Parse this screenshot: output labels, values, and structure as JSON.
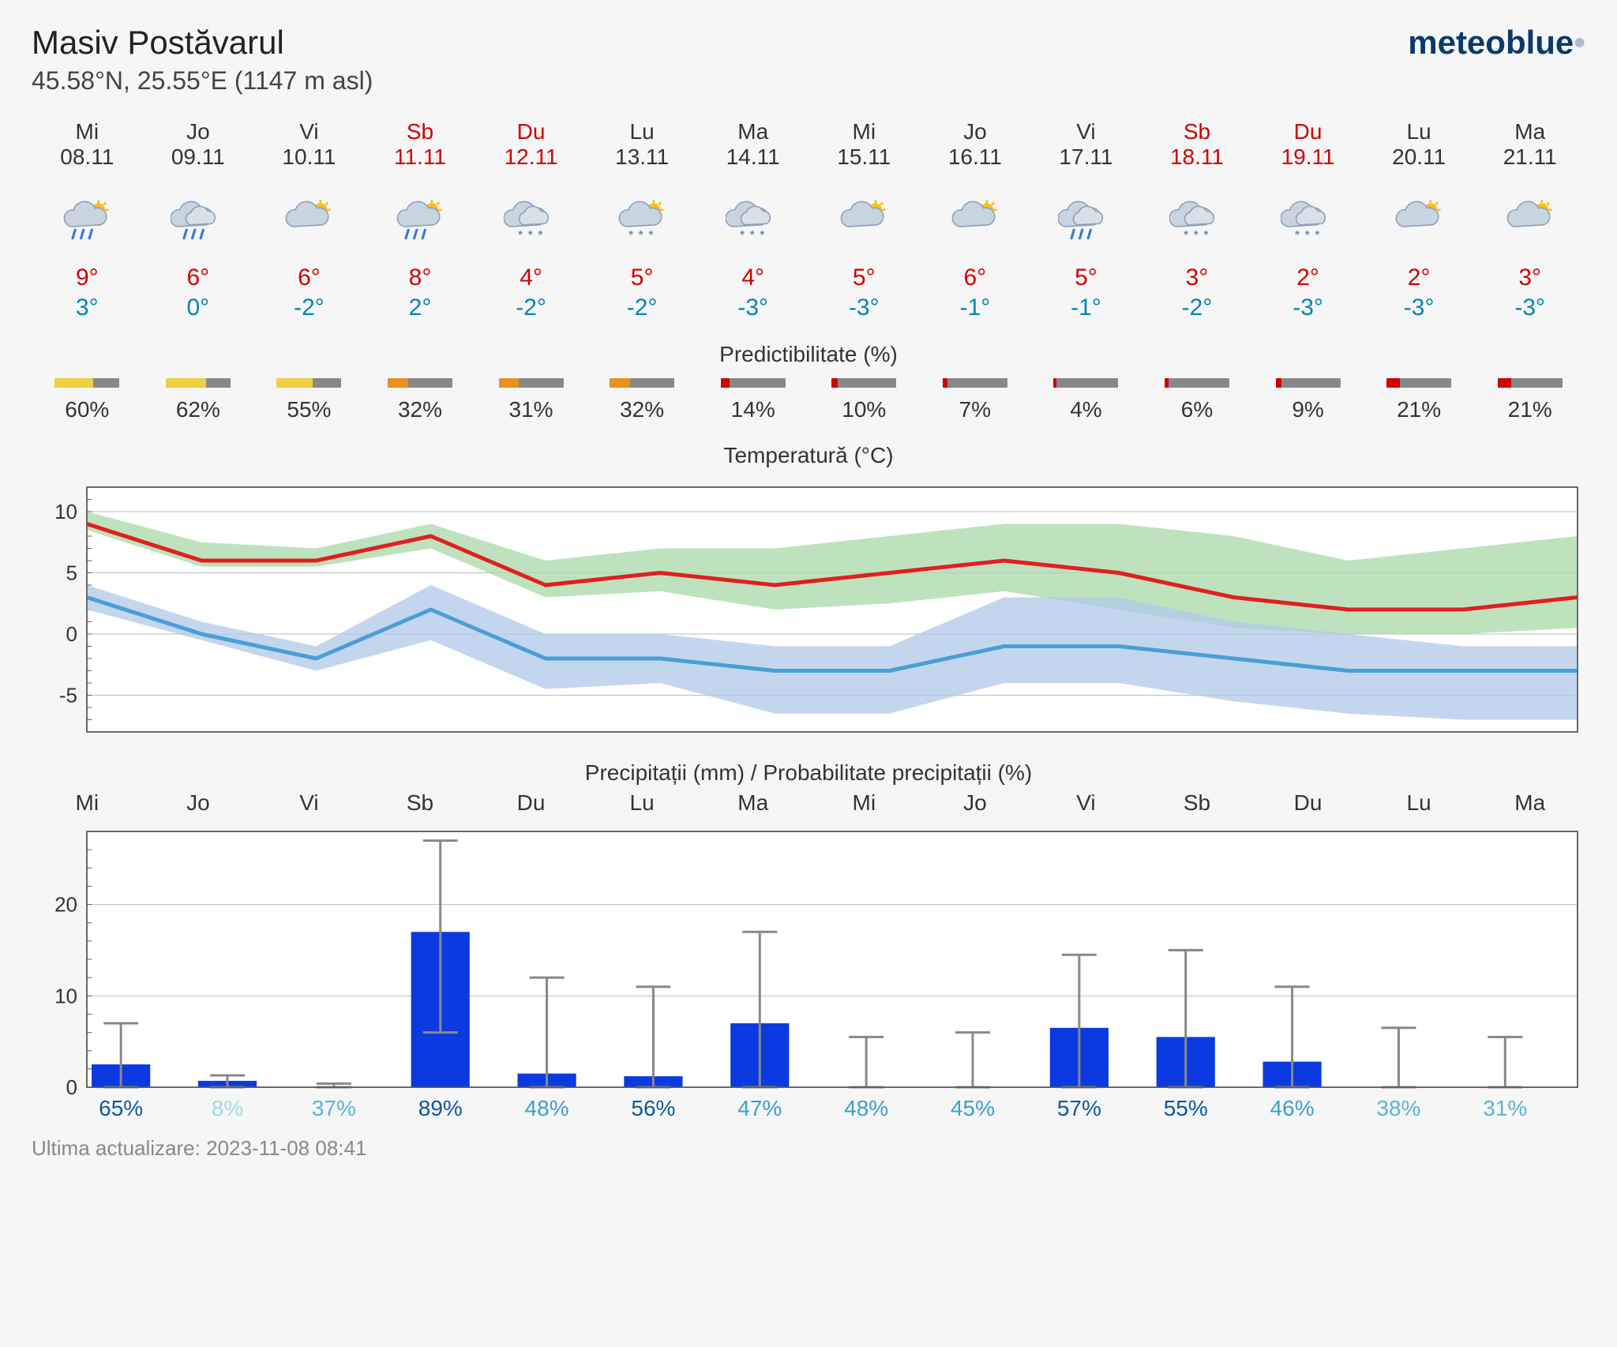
{
  "header": {
    "title": "Masiv Postăvarul",
    "subtitle": "45.58°N, 25.55°E (1147 m asl)",
    "logo_main": "meteoblue",
    "logo_dot": "•"
  },
  "labels": {
    "predictability": "Predictibilitate (%)",
    "temperature": "Temperatură (°C)",
    "precipitation": "Precipitații (mm) / Probabilitate precipitații (%)"
  },
  "days": [
    {
      "dow": "Mi",
      "date": "08.11",
      "weekend": false,
      "icon": "rain-sun",
      "hi": "9°",
      "lo": "3°",
      "pred": 60,
      "pred_color": "#f0d040",
      "precip": 2.5,
      "err_lo": 0,
      "err_hi": 7,
      "prob": "65%",
      "prob_color": "#0a5aa0"
    },
    {
      "dow": "Jo",
      "date": "09.11",
      "weekend": false,
      "icon": "rain-cloud",
      "hi": "6°",
      "lo": "0°",
      "pred": 62,
      "pred_color": "#f0d040",
      "precip": 0.7,
      "err_lo": 0,
      "err_hi": 1.3,
      "prob": "8%",
      "prob_color": "#9fd8e8"
    },
    {
      "dow": "Vi",
      "date": "10.11",
      "weekend": false,
      "icon": "sun-cloud",
      "hi": "6°",
      "lo": "-2°",
      "pred": 55,
      "pred_color": "#f0d040",
      "precip": 0,
      "err_lo": 0,
      "err_hi": 0.4,
      "prob": "37%",
      "prob_color": "#5bb5d5"
    },
    {
      "dow": "Sb",
      "date": "11.11",
      "weekend": true,
      "icon": "rain-sun",
      "hi": "8°",
      "lo": "2°",
      "pred": 32,
      "pred_color": "#e89020",
      "precip": 17,
      "err_lo": 6,
      "err_hi": 27,
      "prob": "89%",
      "prob_color": "#0a5aa0"
    },
    {
      "dow": "Du",
      "date": "12.11",
      "weekend": true,
      "icon": "snow-cloud",
      "hi": "4°",
      "lo": "-2°",
      "pred": 31,
      "pred_color": "#e89020",
      "precip": 1.5,
      "err_lo": 0,
      "err_hi": 12,
      "prob": "48%",
      "prob_color": "#3aa0cc"
    },
    {
      "dow": "Lu",
      "date": "13.11",
      "weekend": false,
      "icon": "sun-snow",
      "hi": "5°",
      "lo": "-2°",
      "pred": 32,
      "pred_color": "#e89020",
      "precip": 1.2,
      "err_lo": 0,
      "err_hi": 11,
      "prob": "56%",
      "prob_color": "#0a5aa0"
    },
    {
      "dow": "Ma",
      "date": "14.11",
      "weekend": false,
      "icon": "snow-cloud",
      "hi": "4°",
      "lo": "-3°",
      "pred": 14,
      "pred_color": "#d00000",
      "precip": 7,
      "err_lo": 0,
      "err_hi": 17,
      "prob": "47%",
      "prob_color": "#3aa0cc"
    },
    {
      "dow": "Mi",
      "date": "15.11",
      "weekend": false,
      "icon": "sun-cloud",
      "hi": "5°",
      "lo": "-3°",
      "pred": 10,
      "pred_color": "#d00000",
      "precip": 0,
      "err_lo": 0,
      "err_hi": 5.5,
      "prob": "48%",
      "prob_color": "#3aa0cc"
    },
    {
      "dow": "Jo",
      "date": "16.11",
      "weekend": false,
      "icon": "sun-cloud",
      "hi": "6°",
      "lo": "-1°",
      "pred": 7,
      "pred_color": "#d00000",
      "precip": 0,
      "err_lo": 0,
      "err_hi": 6,
      "prob": "45%",
      "prob_color": "#3aa0cc"
    },
    {
      "dow": "Vi",
      "date": "17.11",
      "weekend": false,
      "icon": "rain-cloud2",
      "hi": "5°",
      "lo": "-1°",
      "pred": 4,
      "pred_color": "#d00000",
      "precip": 6.5,
      "err_lo": 0,
      "err_hi": 14.5,
      "prob": "57%",
      "prob_color": "#0a5aa0"
    },
    {
      "dow": "Sb",
      "date": "18.11",
      "weekend": true,
      "icon": "snow-cloud",
      "hi": "3°",
      "lo": "-2°",
      "pred": 6,
      "pred_color": "#d00000",
      "precip": 5.5,
      "err_lo": 0,
      "err_hi": 15,
      "prob": "55%",
      "prob_color": "#0a5aa0"
    },
    {
      "dow": "Du",
      "date": "19.11",
      "weekend": true,
      "icon": "snow-cloud",
      "hi": "2°",
      "lo": "-3°",
      "pred": 9,
      "pred_color": "#d00000",
      "precip": 2.8,
      "err_lo": 0,
      "err_hi": 11,
      "prob": "46%",
      "prob_color": "#3aa0cc"
    },
    {
      "dow": "Lu",
      "date": "20.11",
      "weekend": false,
      "icon": "sun-cloud",
      "hi": "2°",
      "lo": "-3°",
      "pred": 21,
      "pred_color": "#d00000",
      "precip": 0,
      "err_lo": 0,
      "err_hi": 6.5,
      "prob": "38%",
      "prob_color": "#5bb5d5"
    },
    {
      "dow": "Ma",
      "date": "21.11",
      "weekend": false,
      "icon": "sun-cloud",
      "hi": "3°",
      "lo": "-3°",
      "pred": 21,
      "pred_color": "#d00000",
      "precip": 0,
      "err_lo": 0,
      "err_hi": 5.5,
      "prob": "31%",
      "prob_color": "#5bb5d5"
    }
  ],
  "temp_chart": {
    "ylim": [
      -8,
      12
    ],
    "yticks": [
      -5,
      0,
      5,
      10
    ],
    "grid_color": "#bbb",
    "bg": "#ffffff",
    "hi_line_color": "#e02020",
    "hi_band_color": "#a8d8a8",
    "lo_line_color": "#4a9ed8",
    "lo_band_color": "#b0c8e8",
    "hi": [
      9,
      6,
      6,
      8,
      4,
      5,
      4,
      5,
      6,
      5,
      3,
      2,
      2,
      3
    ],
    "hi_u": [
      10,
      7.5,
      7,
      9,
      6,
      7,
      7,
      8,
      9,
      9,
      8,
      6,
      7,
      8
    ],
    "hi_d": [
      8.5,
      5.5,
      5.5,
      7,
      3,
      3.5,
      2,
      2.5,
      3.5,
      2,
      0.5,
      0,
      0,
      0.5
    ],
    "lo": [
      3,
      0,
      -2,
      2,
      -2,
      -2,
      -3,
      -3,
      -1,
      -1,
      -2,
      -3,
      -3,
      -3
    ],
    "lo_u": [
      4,
      1,
      -1,
      4,
      0,
      0,
      -1,
      -1,
      3,
      3,
      1,
      0,
      -1,
      -1
    ],
    "lo_d": [
      2,
      -0.5,
      -3,
      -0.5,
      -4.5,
      -4,
      -6.5,
      -6.5,
      -4,
      -4,
      -5.5,
      -6.5,
      -7,
      -7
    ]
  },
  "precip_chart": {
    "ylim": [
      0,
      28
    ],
    "yticks": [
      0,
      10,
      20
    ],
    "grid_color": "#bbb",
    "bg": "#ffffff",
    "bar_color": "#0a3ae0",
    "err_color": "#888"
  },
  "footer": {
    "updated": "Ultima actualizare: 2023-11-08 08:41"
  }
}
